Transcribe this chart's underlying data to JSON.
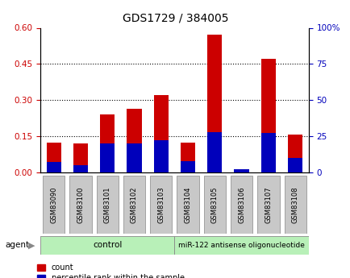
{
  "title": "GDS1729 / 384005",
  "samples": [
    "GSM83090",
    "GSM83100",
    "GSM83101",
    "GSM83102",
    "GSM83103",
    "GSM83104",
    "GSM83105",
    "GSM83106",
    "GSM83107",
    "GSM83108"
  ],
  "count_values": [
    0.125,
    0.12,
    0.24,
    0.265,
    0.32,
    0.125,
    0.57,
    0.008,
    0.47,
    0.158
  ],
  "percentile_values": [
    7,
    5,
    20,
    20,
    22,
    8,
    28,
    2,
    27,
    10
  ],
  "ylim_left": [
    0,
    0.6
  ],
  "ylim_right": [
    0,
    100
  ],
  "yticks_left": [
    0,
    0.15,
    0.3,
    0.45,
    0.6
  ],
  "yticks_right": [
    0,
    25,
    50,
    75,
    100
  ],
  "bar_color_red": "#CC0000",
  "bar_color_blue": "#0000BB",
  "bar_width": 0.55,
  "background_color": "#ffffff",
  "left_label_color": "#CC0000",
  "right_label_color": "#0000BB",
  "control_color": "#b8f0b8",
  "legend_items": [
    "count",
    "percentile rank within the sample"
  ],
  "control_samples": 5,
  "grid_dotted_at": [
    0.15,
    0.3,
    0.45
  ]
}
